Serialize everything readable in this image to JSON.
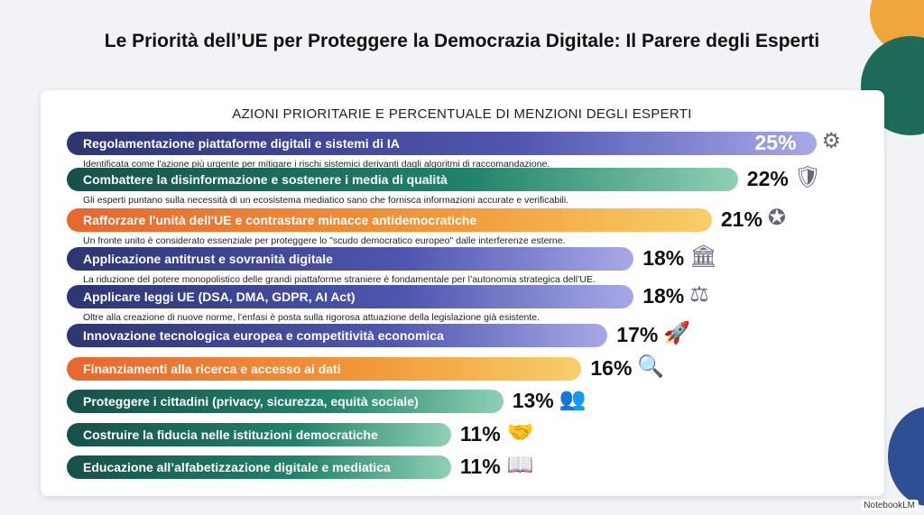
{
  "title": "Le Priorità dell’UE per Proteggere la Democrazia Digitale: Il Parere degli Esperti",
  "brand": "NotebookLM",
  "colors": {
    "blue": "#2c3672",
    "green": "#17504a",
    "orange": "#e6672f"
  },
  "chart_data": {
    "type": "bar",
    "orientation": "horizontal",
    "title": "AZIONI PRIORITARIE E PERCENTUALE DI MENZIONI DEGLI ESPERTI",
    "unit": "%",
    "items": [
      {
        "label": "Regolamentazione piattaforme digitali e sistemi di IA",
        "value": 25,
        "pct": "25%",
        "color": "blue",
        "icon": "ai-brain-circuit-icon",
        "desc": "Identificata come l'azione più urgente per mitigare i rischi sistemici derivanti dagli algoritmi di raccomandazione."
      },
      {
        "label": "Combattere la disinformazione e sostenere i media di qualità",
        "value": 22,
        "pct": "22%",
        "color": "green",
        "icon": "shield-media-icon",
        "desc": "Gli esperti puntano sulla necessità di un ecosistema mediatico sano che fornisca informazioni accurate e verificabili."
      },
      {
        "label": "Rafforzare l'unità dell'UE e contrastare minacce antidemocratiche",
        "value": 21,
        "pct": "21%",
        "color": "orange",
        "icon": "eu-shield-stars-icon",
        "desc": "Un fronte unito è considerato essenziale per proteggere lo \"scudo democratico europeo\" dalle interferenze esterne."
      },
      {
        "label": "Applicazione antitrust e sovranità digitale",
        "value": 18,
        "pct": "18%",
        "color": "blue",
        "icon": "institution-lock-icon",
        "desc": "La riduzione del potere monopolistico delle grandi piattaforme straniere è fondamentale per l’autonomia strategica dell’UE."
      },
      {
        "label": "Applicare leggi UE (DSA, DMA, GDPR, AI Act)",
        "value": 18,
        "pct": "18%",
        "color": "blue",
        "icon": "scales-icon",
        "desc": "Oltre alla creazione di nuove norme, l’enfasi è posta sulla rigorosa attuazione della legislazione già esistente."
      },
      {
        "label": "Innovazione tecnologica europea e competitività economica",
        "value": 17,
        "pct": "17%",
        "color": "blue",
        "icon": "rocket-icon",
        "desc": ""
      },
      {
        "label": "Finanziamenti alla ricerca e accesso ai dati",
        "value": 16,
        "pct": "16%",
        "color": "orange",
        "icon": "database-search-icon",
        "desc": ""
      },
      {
        "label": "Proteggere i cittadini (privacy, sicurezza, equità sociale)",
        "value": 13,
        "pct": "13%",
        "color": "green",
        "icon": "people-shield-icon",
        "desc": ""
      },
      {
        "label": "Costruire la fiducia nelle istituzioni democratiche",
        "value": 11,
        "pct": "11%",
        "color": "green",
        "icon": "institution-handshake-icon",
        "desc": ""
      },
      {
        "label": "Educazione all’alfabetizzazione digitale e mediatica",
        "value": 11,
        "pct": "11%",
        "color": "green",
        "icon": "book-tablet-icon",
        "desc": ""
      }
    ]
  }
}
